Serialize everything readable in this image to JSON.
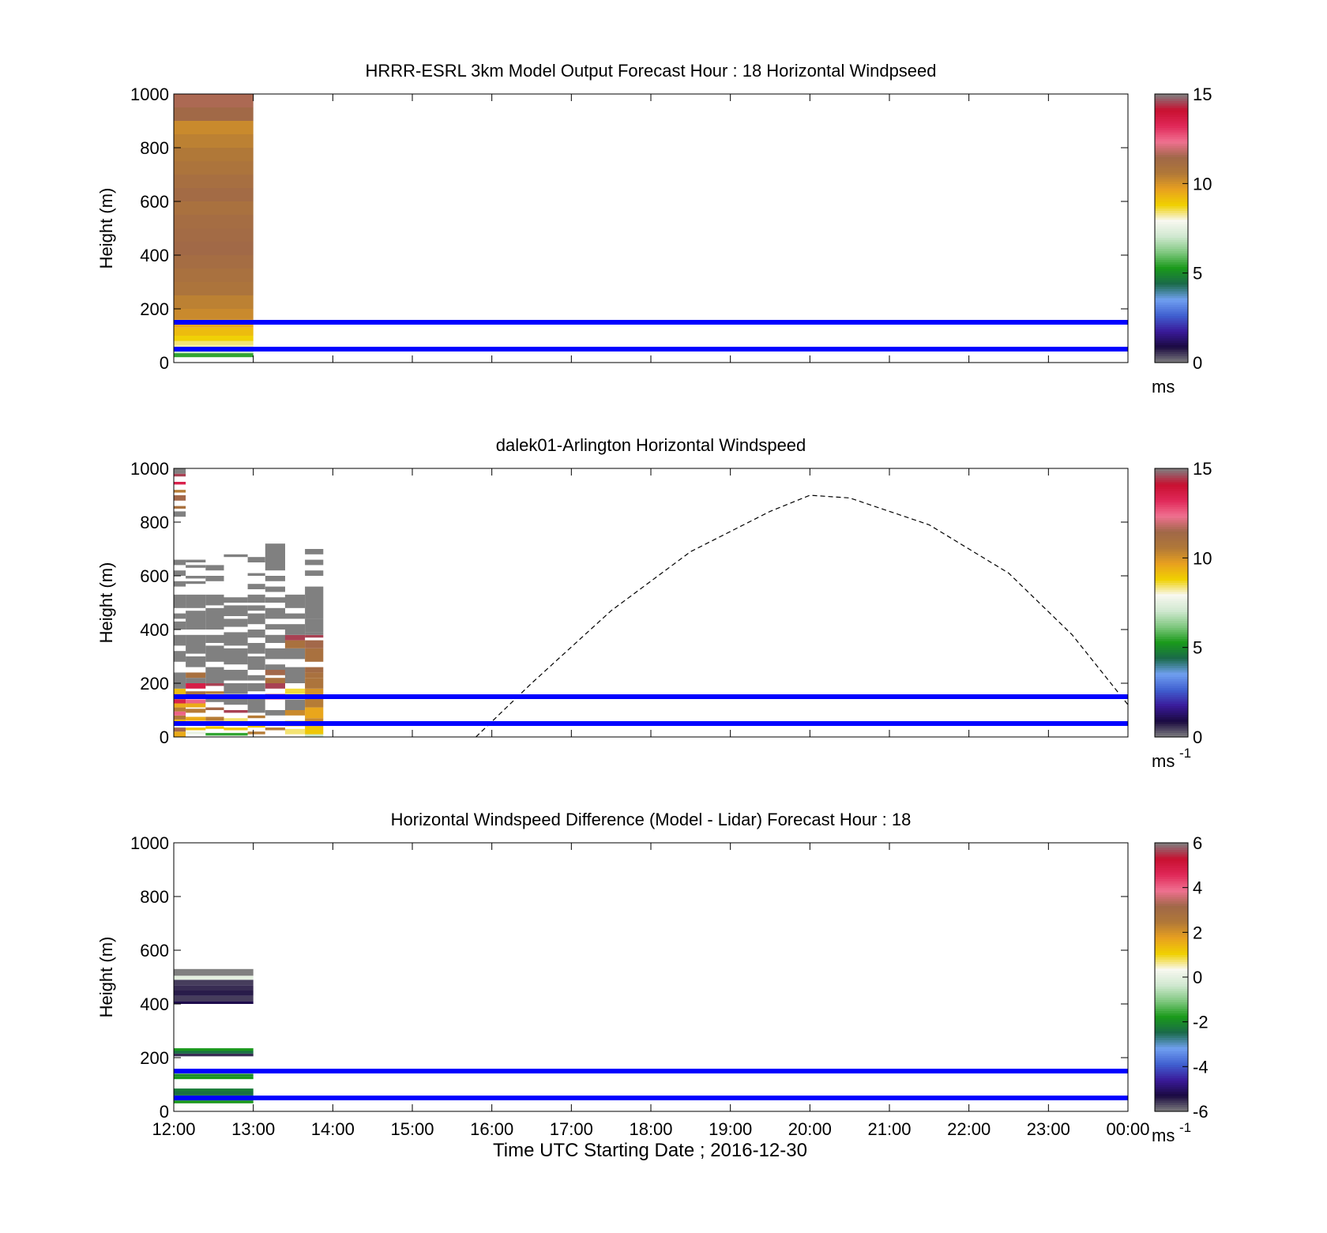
{
  "x_tick_labels": [
    "12:00",
    "13:00",
    "14:00",
    "15:00",
    "16:00",
    "17:00",
    "18:00",
    "19:00",
    "20:00",
    "21:00",
    "22:00",
    "23:00",
    "00:00"
  ],
  "xlabel": "Time UTC  Starting Date ; 2016-12-30",
  "colors": {
    "reference_lines": "#0000ff",
    "axes": "#000000",
    "missing_data": "#808080",
    "day_curve": "#000000"
  },
  "colormap_stops": [
    "#808080",
    "#1a0a40",
    "#3a1a9a",
    "#4060d0",
    "#70a0f0",
    "#1a6a4a",
    "#1a9a1a",
    "#80c880",
    "#d0e8d0",
    "#f8f8f0",
    "#f0d000",
    "#e8a020",
    "#b07838",
    "#a06848",
    "#f07090",
    "#e02858",
    "#c81030",
    "#808080"
  ],
  "chart_data": [
    {
      "type": "heatmap",
      "title": "HRRR-ESRL 3km Model Output   Forecast Hour : 18 Horizontal Windpseed",
      "ylabel": "Height (m)",
      "xlim": [
        0,
        12
      ],
      "ylim": [
        0,
        1000
      ],
      "y_ticks": [
        0,
        200,
        400,
        600,
        800,
        1000
      ],
      "colorbar": {
        "min": 0,
        "max": 15,
        "ticks": [
          0,
          5,
          10,
          15
        ],
        "units_label": "ms",
        "units_sup": ""
      },
      "reference_lines_m": [
        50,
        150
      ],
      "grid": false,
      "columns": [
        {
          "t0": 0,
          "t1": 1,
          "cells": [
            [
              20,
              35,
              5.5
            ],
            [
              35,
              45,
              7
            ],
            [
              45,
              55,
              7.6
            ],
            [
              55,
              65,
              8.2
            ],
            [
              65,
              80,
              8.4
            ],
            [
              80,
              100,
              8.8
            ],
            [
              100,
              130,
              9.2
            ],
            [
              130,
              160,
              9.6
            ],
            [
              160,
              200,
              10.2
            ],
            [
              200,
              250,
              10.4
            ],
            [
              250,
              300,
              10.8
            ],
            [
              300,
              350,
              11
            ],
            [
              350,
              400,
              11.2
            ],
            [
              400,
              450,
              11.4
            ],
            [
              450,
              500,
              11.3
            ],
            [
              500,
              550,
              11.2
            ],
            [
              550,
              600,
              11
            ],
            [
              600,
              650,
              11.3
            ],
            [
              650,
              700,
              11.1
            ],
            [
              700,
              750,
              10.8
            ],
            [
              750,
              800,
              10.6
            ],
            [
              800,
              850,
              10.4
            ],
            [
              850,
              900,
              10.2
            ],
            [
              900,
              950,
              11.4
            ],
            [
              950,
              1000,
              11.6
            ]
          ]
        }
      ]
    },
    {
      "type": "heatmap",
      "title": "dalek01-Arlington  Horizontal Windspeed",
      "ylabel": "Height (m)",
      "xlim": [
        0,
        12
      ],
      "ylim": [
        0,
        1000
      ],
      "y_ticks": [
        0,
        200,
        400,
        600,
        800,
        1000
      ],
      "colorbar": {
        "min": 0,
        "max": 15,
        "ticks": [
          0,
          5,
          10,
          15
        ],
        "units_label": "ms",
        "units_sup": "-1"
      },
      "reference_lines_m": [
        50,
        150
      ],
      "grid": false,
      "day_curve": {
        "t": [
          3.8,
          4.5,
          5.5,
          6.5,
          7.5,
          8.0,
          8.5,
          9.5,
          10.5,
          11.3,
          12.0
        ],
        "h": [
          0,
          200,
          470,
          690,
          840,
          900,
          890,
          790,
          610,
          380,
          120
        ]
      },
      "columns": [
        {
          "t0": 0.0,
          "t1": 0.15,
          "cells": [
            [
              0,
              20,
              9.5
            ],
            [
              20,
              35,
              11.5
            ],
            [
              35,
              50,
              7.6
            ],
            [
              50,
              65,
              9.2
            ],
            [
              65,
              80,
              10.6
            ],
            [
              80,
              95,
              12.5
            ],
            [
              95,
              110,
              10.5
            ],
            [
              110,
              125,
              9.5
            ],
            [
              125,
              140,
              13.5
            ],
            [
              140,
              160,
              11
            ],
            [
              160,
              180,
              9.2
            ],
            [
              180,
              200,
              16
            ],
            [
              200,
              240,
              16
            ],
            [
              280,
              320,
              16
            ],
            [
              340,
              380,
              16
            ],
            [
              400,
              430,
              16
            ],
            [
              440,
              460,
              16
            ],
            [
              480,
              530,
              16
            ],
            [
              560,
              580,
              16
            ],
            [
              600,
              620,
              16
            ],
            [
              640,
              660,
              16
            ],
            [
              820,
              840,
              16
            ],
            [
              850,
              860,
              11
            ],
            [
              880,
              900,
              11.5
            ],
            [
              910,
              920,
              10.5
            ],
            [
              940,
              950,
              13.5
            ],
            [
              980,
              1000,
              16
            ],
            [
              970,
              980,
              14.5
            ]
          ]
        },
        {
          "t0": 0.15,
          "t1": 0.4,
          "cells": [
            [
              10,
              20,
              7.6
            ],
            [
              25,
              35,
              9
            ],
            [
              40,
              50,
              7.4
            ],
            [
              60,
              75,
              9.5
            ],
            [
              90,
              105,
              10.5
            ],
            [
              110,
              125,
              9.5
            ],
            [
              125,
              140,
              12.5
            ],
            [
              150,
              170,
              11
            ],
            [
              180,
              200,
              13.6
            ],
            [
              200,
              220,
              16
            ],
            [
              220,
              240,
              11
            ],
            [
              260,
              300,
              16
            ],
            [
              310,
              380,
              16
            ],
            [
              400,
              470,
              16
            ],
            [
              480,
              530,
              16
            ],
            [
              570,
              580,
              16
            ],
            [
              590,
              600,
              16
            ],
            [
              630,
              640,
              16
            ],
            [
              650,
              660,
              16
            ]
          ]
        },
        {
          "t0": 0.4,
          "t1": 0.63,
          "cells": [
            [
              5,
              15,
              5.5
            ],
            [
              30,
              40,
              9
            ],
            [
              60,
              75,
              10.5
            ],
            [
              100,
              110,
              11.5
            ],
            [
              130,
              145,
              15.1
            ],
            [
              160,
              170,
              10.5
            ],
            [
              190,
              200,
              14.5
            ],
            [
              200,
              260,
              16
            ],
            [
              280,
              340,
              16
            ],
            [
              350,
              380,
              16
            ],
            [
              400,
              480,
              16
            ],
            [
              490,
              530,
              16
            ],
            [
              580,
              600,
              16
            ],
            [
              620,
              640,
              16
            ]
          ]
        },
        {
          "t0": 0.63,
          "t1": 0.93,
          "cells": [
            [
              5,
              15,
              5.5
            ],
            [
              25,
              35,
              9
            ],
            [
              55,
              70,
              8.4
            ],
            [
              90,
              100,
              14.5
            ],
            [
              120,
              150,
              16
            ],
            [
              160,
              200,
              16
            ],
            [
              210,
              250,
              16
            ],
            [
              270,
              330,
              16
            ],
            [
              340,
              390,
              16
            ],
            [
              410,
              440,
              16
            ],
            [
              450,
              490,
              16
            ],
            [
              500,
              520,
              16
            ],
            [
              670,
              680,
              16
            ]
          ]
        },
        {
          "t0": 0.93,
          "t1": 1.15,
          "cells": [
            [
              10,
              20,
              10.5
            ],
            [
              35,
              50,
              9
            ],
            [
              70,
              80,
              10.5
            ],
            [
              90,
              150,
              16
            ],
            [
              170,
              200,
              16
            ],
            [
              210,
              230,
              16
            ],
            [
              250,
              300,
              16
            ],
            [
              310,
              350,
              16
            ],
            [
              370,
              400,
              16
            ],
            [
              420,
              460,
              16
            ],
            [
              470,
              490,
              16
            ],
            [
              500,
              530,
              16
            ],
            [
              550,
              570,
              16
            ],
            [
              600,
              610,
              16
            ],
            [
              650,
              670,
              16
            ]
          ]
        },
        {
          "t0": 1.15,
          "t1": 1.4,
          "cells": [
            [
              25,
              35,
              10.5
            ],
            [
              80,
              100,
              15.1
            ],
            [
              140,
              160,
              13.5
            ],
            [
              180,
              200,
              14.5
            ],
            [
              200,
              220,
              11
            ],
            [
              230,
              250,
              11.5
            ],
            [
              250,
              270,
              16
            ],
            [
              290,
              330,
              16
            ],
            [
              350,
              380,
              16
            ],
            [
              400,
              420,
              16
            ],
            [
              440,
              480,
              16
            ],
            [
              500,
              520,
              16
            ],
            [
              540,
              560,
              16
            ],
            [
              580,
              600,
              16
            ],
            [
              620,
              720,
              16
            ]
          ]
        },
        {
          "t0": 1.4,
          "t1": 1.65,
          "cells": [
            [
              10,
              30,
              8.4
            ],
            [
              40,
              60,
              9.2
            ],
            [
              80,
              100,
              10.2
            ],
            [
              100,
              140,
              16
            ],
            [
              160,
              180,
              8.6
            ],
            [
              200,
              260,
              16
            ],
            [
              290,
              330,
              16
            ],
            [
              330,
              360,
              11
            ],
            [
              360,
              380,
              14.5
            ],
            [
              380,
              420,
              16
            ],
            [
              440,
              460,
              16
            ],
            [
              480,
              530,
              16
            ]
          ]
        },
        {
          "t0": 1.65,
          "t1": 1.88,
          "cells": [
            [
              0,
              10,
              7
            ],
            [
              10,
              40,
              9
            ],
            [
              40,
              70,
              10.2
            ],
            [
              70,
              110,
              9.6
            ],
            [
              110,
              150,
              10.5
            ],
            [
              150,
              180,
              10
            ],
            [
              180,
              220,
              10.8
            ],
            [
              220,
              240,
              11
            ],
            [
              240,
              260,
              11.3
            ],
            [
              280,
              300,
              11
            ],
            [
              300,
              330,
              11
            ],
            [
              330,
              360,
              11.5
            ],
            [
              370,
              380,
              14.5
            ],
            [
              380,
              390,
              15.2
            ],
            [
              390,
              440,
              16
            ],
            [
              440,
              500,
              16
            ],
            [
              500,
              560,
              16
            ],
            [
              600,
              620,
              16
            ],
            [
              640,
              660,
              16
            ],
            [
              680,
              700,
              16
            ]
          ]
        }
      ]
    },
    {
      "type": "heatmap",
      "title": "Horizontal Windspeed Difference (Model - Lidar) Forecast Hour : 18",
      "ylabel": "Height (m)",
      "xlim": [
        0,
        12
      ],
      "ylim": [
        0,
        1000
      ],
      "y_ticks": [
        0,
        200,
        400,
        600,
        800,
        1000
      ],
      "colorbar": {
        "min": -6,
        "max": 6,
        "ticks": [
          -6,
          -4,
          -2,
          0,
          2,
          4,
          6
        ],
        "units_label": "ms",
        "units_sup": "-1"
      },
      "reference_lines_m": [
        50,
        150
      ],
      "grid": false,
      "columns": [
        {
          "t0": 0,
          "t1": 1,
          "cells": [
            [
              30,
              40,
              -1.8
            ],
            [
              40,
              50,
              -2.6
            ],
            [
              50,
              60,
              -2.2
            ],
            [
              60,
              75,
              -2.4
            ],
            [
              75,
              85,
              -2.2
            ],
            [
              120,
              130,
              -1.8
            ],
            [
              130,
              140,
              -2
            ],
            [
              205,
              215,
              -5.5
            ],
            [
              215,
              225,
              -2.4
            ],
            [
              225,
              235,
              -1.8
            ],
            [
              400,
              410,
              -5.2
            ],
            [
              410,
              430,
              -5.6
            ],
            [
              430,
              450,
              -5.4
            ],
            [
              450,
              470,
              -5.5
            ],
            [
              470,
              490,
              -5.6
            ],
            [
              490,
              505,
              0
            ],
            [
              505,
              530,
              6.5
            ]
          ]
        }
      ]
    }
  ]
}
